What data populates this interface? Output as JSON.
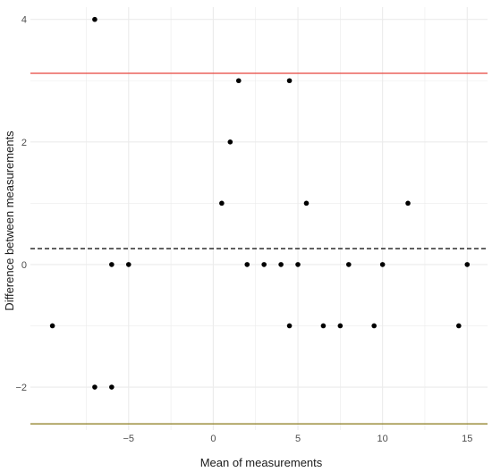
{
  "chart_data": {
    "type": "scatter",
    "title": "",
    "xlabel": "Mean of measurements",
    "ylabel": "Difference between measurements",
    "xlim": [
      -10.8,
      16.2
    ],
    "ylim": [
      -2.7,
      4.2
    ],
    "x_ticks": [
      -5,
      0,
      5,
      10,
      15
    ],
    "x_minor_ticks": [
      -7.5,
      -2.5,
      2.5,
      7.5,
      12.5
    ],
    "y_ticks": [
      -2,
      0,
      2,
      4
    ],
    "y_minor_ticks": [
      -1,
      1,
      3
    ],
    "grid": true,
    "legend": "none",
    "points": [
      {
        "x": -9.5,
        "y": -1
      },
      {
        "x": -7,
        "y": 4
      },
      {
        "x": -7,
        "y": -2
      },
      {
        "x": -6,
        "y": 0
      },
      {
        "x": -6,
        "y": -2
      },
      {
        "x": -5,
        "y": 0
      },
      {
        "x": 0.5,
        "y": 1
      },
      {
        "x": 1,
        "y": 2
      },
      {
        "x": 1.5,
        "y": 3
      },
      {
        "x": 2,
        "y": 0
      },
      {
        "x": 3,
        "y": 0
      },
      {
        "x": 4,
        "y": 0
      },
      {
        "x": 4.5,
        "y": 3
      },
      {
        "x": 4.5,
        "y": -1
      },
      {
        "x": 5,
        "y": 0
      },
      {
        "x": 5.5,
        "y": 1
      },
      {
        "x": 6.5,
        "y": -1
      },
      {
        "x": 7.5,
        "y": -1
      },
      {
        "x": 8,
        "y": 0
      },
      {
        "x": 9.5,
        "y": -1
      },
      {
        "x": 10,
        "y": 0
      },
      {
        "x": 11.5,
        "y": 1
      },
      {
        "x": 14.5,
        "y": -1
      },
      {
        "x": 15,
        "y": 0
      }
    ],
    "reference_lines": [
      {
        "role": "upper-limit",
        "y": 3.12,
        "color": "#e8453c",
        "style": "solid"
      },
      {
        "role": "mean-difference",
        "y": 0.26,
        "color": "#000000",
        "style": "dashed"
      },
      {
        "role": "lower-limit",
        "y": -2.6,
        "color": "#8a7a1a",
        "style": "solid"
      }
    ],
    "point_color": "#000000",
    "grid_color": "#ebebeb"
  }
}
